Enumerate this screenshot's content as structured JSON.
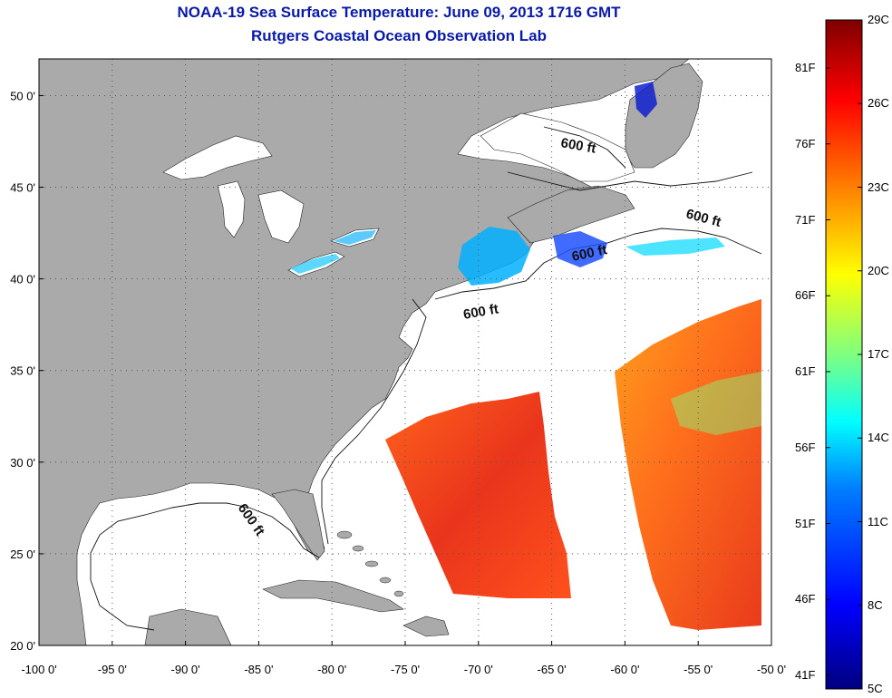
{
  "header": {
    "title": "NOAA-19 Sea Surface Temperature:  June 09, 2013 1716 GMT",
    "subtitle": "Rutgers Coastal Ocean Observation Lab"
  },
  "axes": {
    "x_ticks": [
      "-100 0'",
      "-95 0'",
      "-90 0'",
      "-85 0'",
      "-80 0'",
      "-75 0'",
      "-70 0'",
      "-65 0'",
      "-60 0'",
      "-55 0'",
      "-50 0'"
    ],
    "y_ticks": [
      "50 0'",
      "45 0'",
      "40 0'",
      "35 0'",
      "30 0'",
      "25 0'",
      "20 0'"
    ],
    "lon_range": [
      -100,
      -50
    ],
    "lat_range": [
      20,
      52
    ]
  },
  "contour_labels": [
    "600 ft",
    "600 ft",
    "600 ft",
    "600 ft",
    "600 ft"
  ],
  "colorbar": {
    "celsius": [
      "29C",
      "26C",
      "23C",
      "20C",
      "17C",
      "14C",
      "11C",
      "8C",
      "5C"
    ],
    "fahrenheit": [
      "81F",
      "76F",
      "71F",
      "66F",
      "61F",
      "56F",
      "51F",
      "46F",
      "41F"
    ],
    "colors": [
      "#00007f",
      "#0000ff",
      "#007fff",
      "#00ffff",
      "#7fff7f",
      "#ffff00",
      "#ff7f00",
      "#ff0000",
      "#7f0000"
    ]
  },
  "style": {
    "land": "#aaaaaa",
    "water": "#ffffff",
    "title_color": "#0a1aa8"
  }
}
